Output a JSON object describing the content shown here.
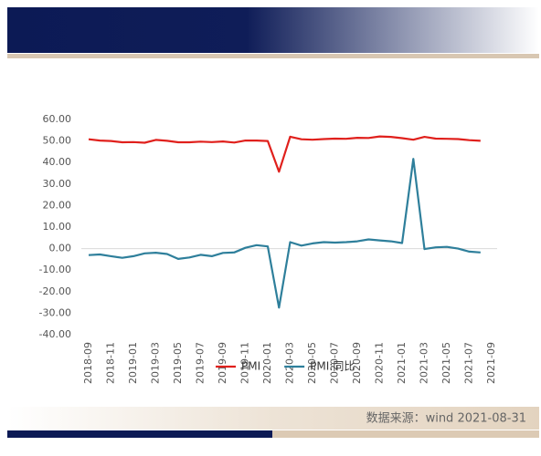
{
  "chart_data": {
    "type": "line",
    "source": "数据来源：wind 2021-08-31",
    "categories": [
      "2018-09",
      null,
      "2018-11",
      null,
      "2019-01",
      null,
      "2019-03",
      null,
      "2019-05",
      null,
      "2019-07",
      null,
      "2019-09",
      null,
      "2019-11",
      null,
      "2020-01",
      null,
      "2020-03",
      null,
      "2020-05",
      null,
      "2020-07",
      null,
      "2020-09",
      null,
      "2020-11",
      null,
      "2021-01",
      null,
      "2021-03",
      null,
      "2021-05",
      null,
      "2021-07",
      null,
      "2021-09"
    ],
    "series": [
      {
        "name": "PMI",
        "color": "#e0201c",
        "values": [
          50.8,
          50.2,
          50.0,
          49.4,
          49.5,
          49.2,
          50.5,
          50.1,
          49.4,
          49.4,
          49.7,
          49.5,
          49.8,
          49.3,
          50.2,
          50.2,
          50.0,
          35.7,
          52.0,
          50.8,
          50.6,
          50.9,
          51.1,
          51.0,
          51.5,
          51.4,
          52.1,
          51.9,
          51.3,
          50.6,
          51.9,
          51.1,
          51.0,
          50.9,
          50.4,
          50.1,
          null
        ]
      },
      {
        "name": "PMI:同比",
        "color": "#2e7f9b",
        "values": [
          -3.0,
          -2.7,
          -3.5,
          -4.3,
          -3.5,
          -2.2,
          -1.9,
          -2.5,
          -4.8,
          -4.1,
          -2.9,
          -3.5,
          -2.0,
          -1.8,
          0.4,
          1.6,
          1.0,
          -27.4,
          3.0,
          1.4,
          2.4,
          3.0,
          2.8,
          3.0,
          3.4,
          4.3,
          3.8,
          3.4,
          2.6,
          41.7,
          -0.2,
          0.6,
          0.8,
          0.0,
          -1.4,
          -1.8,
          null
        ]
      }
    ],
    "ylim": [
      -40,
      60
    ],
    "yticks": [
      {
        "value": -40,
        "label": "-40.00"
      },
      {
        "value": -30,
        "label": "-30.00"
      },
      {
        "value": -20,
        "label": "-20.00"
      },
      {
        "value": -10,
        "label": "-10.00"
      },
      {
        "value": 0,
        "label": "0.00"
      },
      {
        "value": 10,
        "label": "10.00"
      },
      {
        "value": 20,
        "label": "20.00"
      },
      {
        "value": 30,
        "label": "30.00"
      },
      {
        "value": 40,
        "label": "40.00"
      },
      {
        "value": 50,
        "label": "50.00"
      },
      {
        "value": 60,
        "label": "60.00"
      }
    ],
    "legend": "bottom",
    "grid": false
  }
}
